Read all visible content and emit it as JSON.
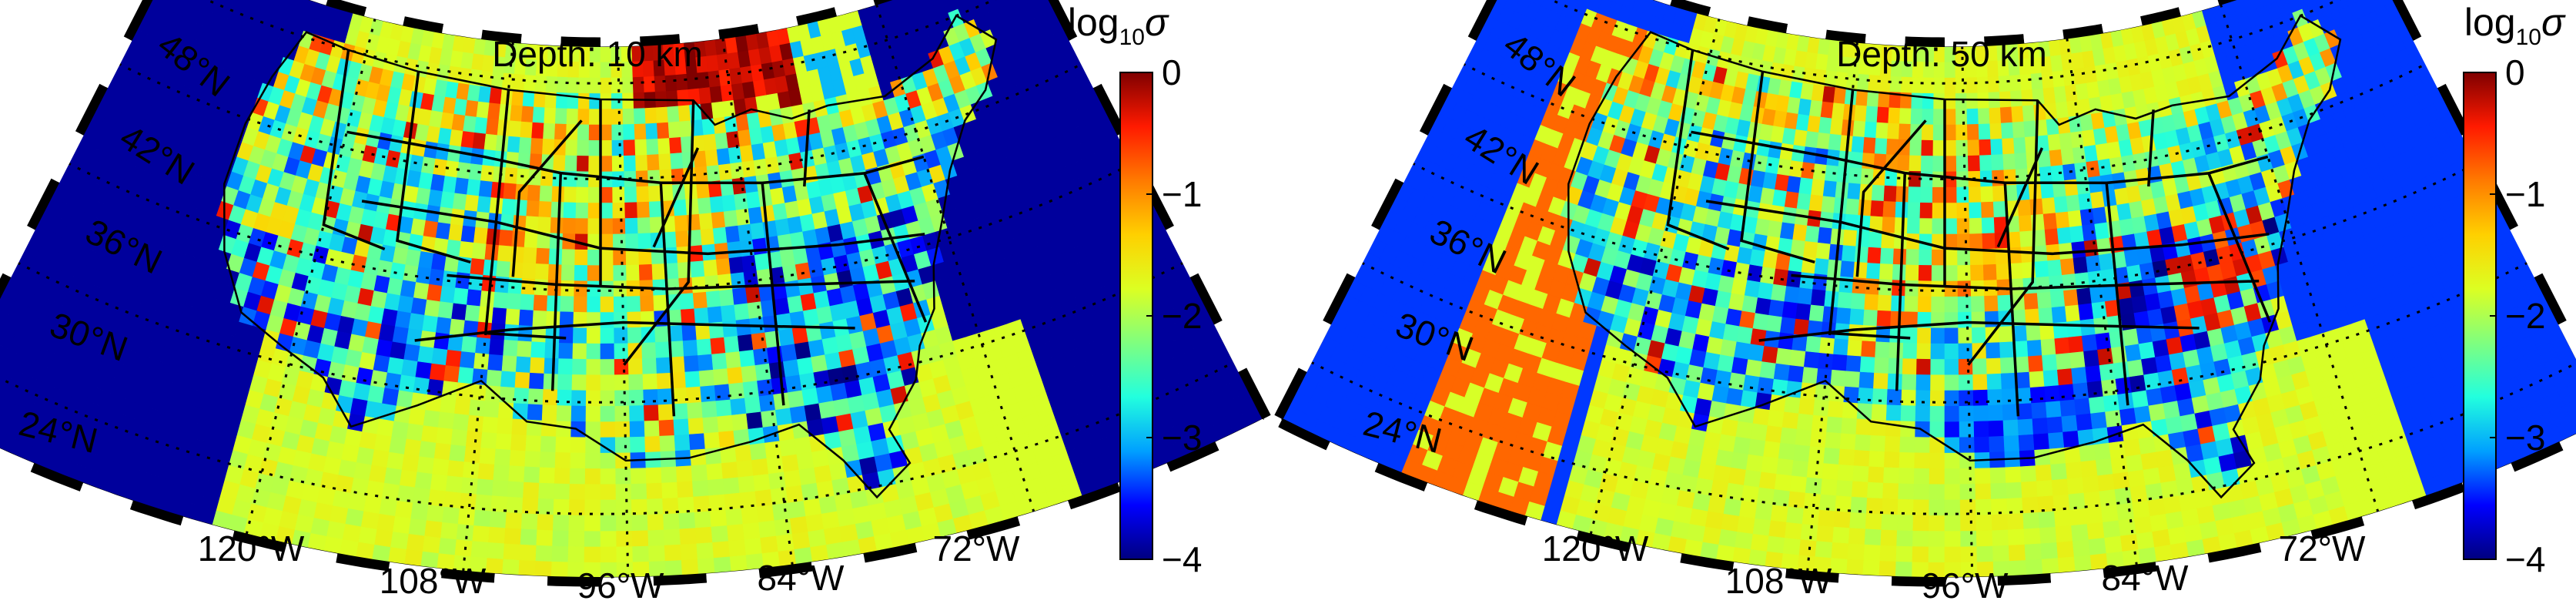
{
  "colormap": {
    "name": "jet",
    "stops": [
      "#00007f",
      "#0000ff",
      "#00a0ff",
      "#22ffde",
      "#7fff7f",
      "#dcff22",
      "#ffd000",
      "#ff7a00",
      "#ff1a00",
      "#7f0000"
    ]
  },
  "panels": [
    {
      "title": "Depth: 10 km",
      "colorbar": {
        "label_base": "log",
        "label_sub": "10",
        "label_var": "σ",
        "range": [
          -4,
          0
        ],
        "ticks": [
          "0",
          "−1",
          "−2",
          "−3",
          "−4"
        ]
      },
      "lat_labels": [
        "48°N",
        "42°N",
        "36°N",
        "30°N",
        "24°N"
      ],
      "lon_labels": [
        "120°W",
        "108°W",
        "96°W",
        "84°W",
        "72°W"
      ],
      "field": {
        "background_value": -1.8,
        "ocean_regions": [
          {
            "name": "pacific",
            "value": -3.9
          },
          {
            "name": "atlantic",
            "value": -3.9
          },
          {
            "name": "gulf-coast-high",
            "value": -0.2
          },
          {
            "name": "gulf-offshore",
            "value": -1.8
          }
        ]
      }
    },
    {
      "title": "Depth: 50 km",
      "colorbar": {
        "label_base": "log",
        "label_sub": "10",
        "label_var": "σ",
        "range": [
          -4,
          0
        ],
        "ticks": [
          "0",
          "−1",
          "−2",
          "−3",
          "−4"
        ]
      },
      "lat_labels": [
        "48°N",
        "42°N",
        "36°N",
        "30°N",
        "24°N"
      ],
      "lon_labels": [
        "120°W",
        "108°W",
        "96°W",
        "84°W",
        "72°W"
      ],
      "field": {
        "background_value": -1.8,
        "ocean_regions": [
          {
            "name": "pacific",
            "value": -3.4
          },
          {
            "name": "atlantic",
            "value": -3.4
          },
          {
            "name": "pacific-margin-orange",
            "value": -0.8
          }
        ]
      }
    }
  ]
}
